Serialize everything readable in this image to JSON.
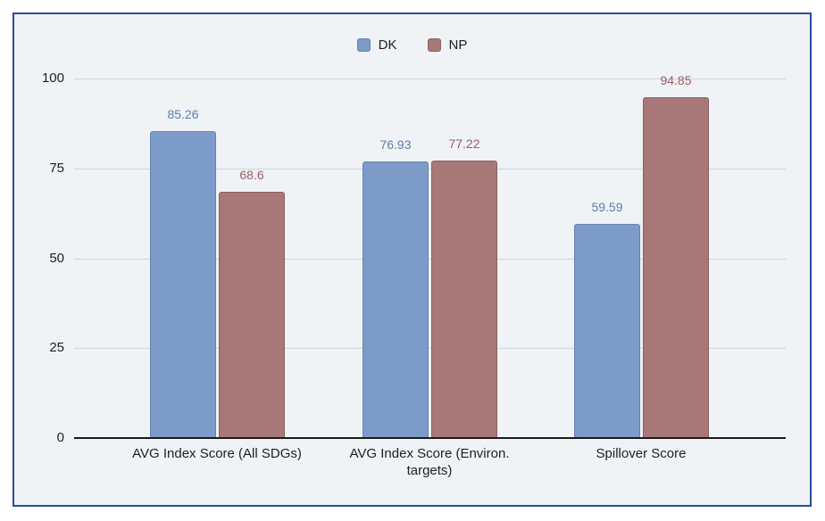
{
  "chart_data": {
    "type": "bar",
    "title": "",
    "xlabel": "",
    "ylabel": "",
    "categories": [
      "AVG Index Score (All SDGs)",
      "AVG Index Score (Environ.\ntargets)",
      "Spillover Score"
    ],
    "series": [
      {
        "name": "DK",
        "values": [
          85.26,
          76.93,
          59.59
        ],
        "value_labels": [
          "85.26",
          "76.93",
          "59.59"
        ],
        "color": "#7d9bc8",
        "border_color": "#6583b1",
        "label_color": "#5e7ca8"
      },
      {
        "name": "NP",
        "values": [
          68.6,
          77.22,
          94.85
        ],
        "value_labels": [
          "68.6",
          "77.22",
          "94.85"
        ],
        "color": "#a87878",
        "border_color": "#8a5f5f",
        "label_color": "#995f63"
      }
    ],
    "y_ticks": [
      0,
      25,
      50,
      75,
      100
    ],
    "ylim": [
      0,
      100
    ],
    "grid": true,
    "legend_position": "top",
    "colors": {
      "frame_border": "#2a4d9e",
      "plot_background": "#eff3f6",
      "page_background": "#ffffff",
      "gridline": "#ccd6dc",
      "axis_line": "#1a1a1a",
      "tick_text": "#1e1e1e"
    }
  }
}
